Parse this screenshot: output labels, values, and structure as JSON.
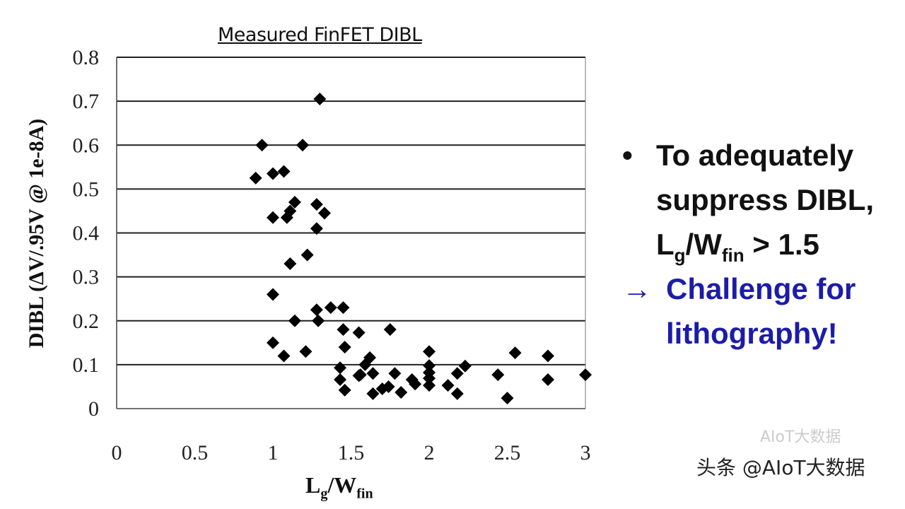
{
  "chart_data": {
    "type": "scatter",
    "title": "Measured FinFET DIBL",
    "xlabel": {
      "main": "L",
      "sub1": "g",
      "mid": "/W",
      "sub2": "fin"
    },
    "ylabel": "DIBL (ΔV/.95V @ 1e-8A)",
    "xlim": [
      0,
      3
    ],
    "ylim": [
      0,
      0.8
    ],
    "xticks": [
      "0",
      "0.5",
      "1",
      "1.5",
      "2",
      "2.5",
      "3"
    ],
    "yticks": [
      "0",
      "0.1",
      "0.2",
      "0.3",
      "0.4",
      "0.5",
      "0.6",
      "0.7",
      "0.8"
    ],
    "grid": "horizontal",
    "marker": "diamond",
    "color": "#000000",
    "points": [
      [
        1.3,
        0.705
      ],
      [
        0.93,
        0.6
      ],
      [
        1.19,
        0.6
      ],
      [
        0.89,
        0.525
      ],
      [
        1.0,
        0.535
      ],
      [
        1.07,
        0.54
      ],
      [
        1.0,
        0.435
      ],
      [
        1.09,
        0.435
      ],
      [
        1.11,
        0.45
      ],
      [
        1.14,
        0.47
      ],
      [
        1.28,
        0.465
      ],
      [
        1.33,
        0.445
      ],
      [
        1.28,
        0.41
      ],
      [
        1.11,
        0.33
      ],
      [
        1.22,
        0.35
      ],
      [
        1.0,
        0.26
      ],
      [
        1.14,
        0.2
      ],
      [
        1.28,
        0.225
      ],
      [
        1.29,
        0.2
      ],
      [
        1.37,
        0.23
      ],
      [
        1.45,
        0.23
      ],
      [
        1.45,
        0.18
      ],
      [
        1.46,
        0.14
      ],
      [
        1.0,
        0.15
      ],
      [
        1.07,
        0.12
      ],
      [
        1.21,
        0.13
      ],
      [
        1.55,
        0.173
      ],
      [
        1.75,
        0.18
      ],
      [
        2.0,
        0.13
      ],
      [
        2.55,
        0.127
      ],
      [
        2.76,
        0.12
      ],
      [
        1.43,
        0.093
      ],
      [
        1.43,
        0.066
      ],
      [
        1.46,
        0.042
      ],
      [
        1.62,
        0.116
      ],
      [
        1.59,
        0.1
      ],
      [
        1.56,
        0.077
      ],
      [
        1.64,
        0.08
      ],
      [
        1.55,
        0.075
      ],
      [
        1.64,
        0.034
      ],
      [
        1.7,
        0.045
      ],
      [
        1.78,
        0.08
      ],
      [
        1.74,
        0.05
      ],
      [
        1.82,
        0.037
      ],
      [
        1.89,
        0.066
      ],
      [
        1.91,
        0.056
      ],
      [
        2.0,
        0.098
      ],
      [
        2.0,
        0.082
      ],
      [
        2.0,
        0.069
      ],
      [
        2.0,
        0.053
      ],
      [
        2.12,
        0.053
      ],
      [
        2.18,
        0.034
      ],
      [
        2.18,
        0.08
      ],
      [
        2.23,
        0.097
      ],
      [
        2.44,
        0.077
      ],
      [
        2.5,
        0.024
      ],
      [
        2.76,
        0.066
      ],
      [
        3.0,
        0.077
      ]
    ]
  },
  "bullets": {
    "bullet_symbol": "•",
    "line1": "To adequately",
    "line2": "suppress DIBL,",
    "line3": {
      "main": "L",
      "sub1": "g",
      "mid": "/W",
      "sub2": "fin",
      "tail": " > 1.5"
    },
    "arrow": "→",
    "line4": "Challenge for",
    "line5": "lithography!",
    "accent_color": "#1c1ca8"
  },
  "watermark": {
    "text": "头条 @AIoT大数据",
    "faint": "AIoT大数据"
  }
}
